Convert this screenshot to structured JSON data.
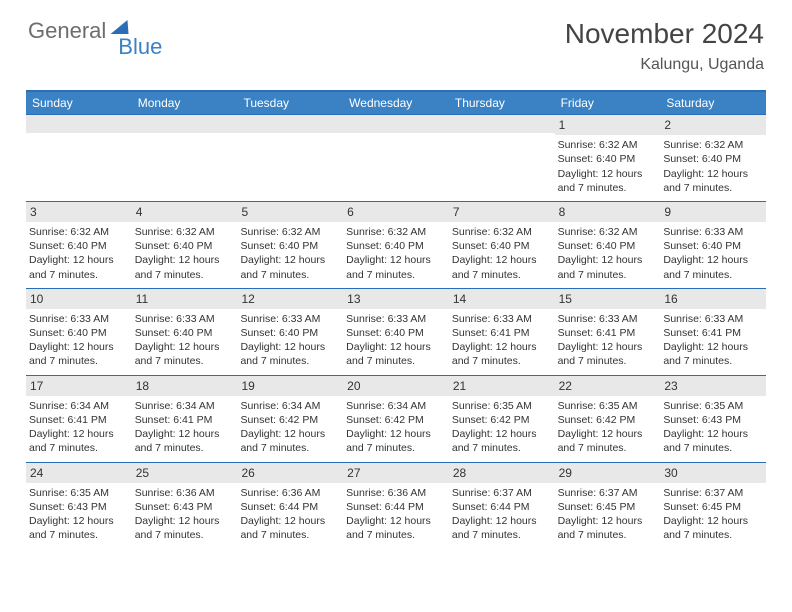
{
  "logo": {
    "part1": "General",
    "part2": "Blue"
  },
  "title": "November 2024",
  "subtitle": "Kalungu, Uganda",
  "colors": {
    "header_bg": "#3b82c4",
    "border": "#2a6fb5",
    "daynum_bg": "#e8e8e8",
    "text": "#333333",
    "logo_gray": "#6d6d6d",
    "logo_blue": "#3b82c4"
  },
  "day_headers": [
    "Sunday",
    "Monday",
    "Tuesday",
    "Wednesday",
    "Thursday",
    "Friday",
    "Saturday"
  ],
  "first_weekday_index": 5,
  "days": [
    {
      "n": 1,
      "sunrise": "6:32 AM",
      "sunset": "6:40 PM",
      "daylight": "12 hours and 7 minutes."
    },
    {
      "n": 2,
      "sunrise": "6:32 AM",
      "sunset": "6:40 PM",
      "daylight": "12 hours and 7 minutes."
    },
    {
      "n": 3,
      "sunrise": "6:32 AM",
      "sunset": "6:40 PM",
      "daylight": "12 hours and 7 minutes."
    },
    {
      "n": 4,
      "sunrise": "6:32 AM",
      "sunset": "6:40 PM",
      "daylight": "12 hours and 7 minutes."
    },
    {
      "n": 5,
      "sunrise": "6:32 AM",
      "sunset": "6:40 PM",
      "daylight": "12 hours and 7 minutes."
    },
    {
      "n": 6,
      "sunrise": "6:32 AM",
      "sunset": "6:40 PM",
      "daylight": "12 hours and 7 minutes."
    },
    {
      "n": 7,
      "sunrise": "6:32 AM",
      "sunset": "6:40 PM",
      "daylight": "12 hours and 7 minutes."
    },
    {
      "n": 8,
      "sunrise": "6:32 AM",
      "sunset": "6:40 PM",
      "daylight": "12 hours and 7 minutes."
    },
    {
      "n": 9,
      "sunrise": "6:33 AM",
      "sunset": "6:40 PM",
      "daylight": "12 hours and 7 minutes."
    },
    {
      "n": 10,
      "sunrise": "6:33 AM",
      "sunset": "6:40 PM",
      "daylight": "12 hours and 7 minutes."
    },
    {
      "n": 11,
      "sunrise": "6:33 AM",
      "sunset": "6:40 PM",
      "daylight": "12 hours and 7 minutes."
    },
    {
      "n": 12,
      "sunrise": "6:33 AM",
      "sunset": "6:40 PM",
      "daylight": "12 hours and 7 minutes."
    },
    {
      "n": 13,
      "sunrise": "6:33 AM",
      "sunset": "6:40 PM",
      "daylight": "12 hours and 7 minutes."
    },
    {
      "n": 14,
      "sunrise": "6:33 AM",
      "sunset": "6:41 PM",
      "daylight": "12 hours and 7 minutes."
    },
    {
      "n": 15,
      "sunrise": "6:33 AM",
      "sunset": "6:41 PM",
      "daylight": "12 hours and 7 minutes."
    },
    {
      "n": 16,
      "sunrise": "6:33 AM",
      "sunset": "6:41 PM",
      "daylight": "12 hours and 7 minutes."
    },
    {
      "n": 17,
      "sunrise": "6:34 AM",
      "sunset": "6:41 PM",
      "daylight": "12 hours and 7 minutes."
    },
    {
      "n": 18,
      "sunrise": "6:34 AM",
      "sunset": "6:41 PM",
      "daylight": "12 hours and 7 minutes."
    },
    {
      "n": 19,
      "sunrise": "6:34 AM",
      "sunset": "6:42 PM",
      "daylight": "12 hours and 7 minutes."
    },
    {
      "n": 20,
      "sunrise": "6:34 AM",
      "sunset": "6:42 PM",
      "daylight": "12 hours and 7 minutes."
    },
    {
      "n": 21,
      "sunrise": "6:35 AM",
      "sunset": "6:42 PM",
      "daylight": "12 hours and 7 minutes."
    },
    {
      "n": 22,
      "sunrise": "6:35 AM",
      "sunset": "6:42 PM",
      "daylight": "12 hours and 7 minutes."
    },
    {
      "n": 23,
      "sunrise": "6:35 AM",
      "sunset": "6:43 PM",
      "daylight": "12 hours and 7 minutes."
    },
    {
      "n": 24,
      "sunrise": "6:35 AM",
      "sunset": "6:43 PM",
      "daylight": "12 hours and 7 minutes."
    },
    {
      "n": 25,
      "sunrise": "6:36 AM",
      "sunset": "6:43 PM",
      "daylight": "12 hours and 7 minutes."
    },
    {
      "n": 26,
      "sunrise": "6:36 AM",
      "sunset": "6:44 PM",
      "daylight": "12 hours and 7 minutes."
    },
    {
      "n": 27,
      "sunrise": "6:36 AM",
      "sunset": "6:44 PM",
      "daylight": "12 hours and 7 minutes."
    },
    {
      "n": 28,
      "sunrise": "6:37 AM",
      "sunset": "6:44 PM",
      "daylight": "12 hours and 7 minutes."
    },
    {
      "n": 29,
      "sunrise": "6:37 AM",
      "sunset": "6:45 PM",
      "daylight": "12 hours and 7 minutes."
    },
    {
      "n": 30,
      "sunrise": "6:37 AM",
      "sunset": "6:45 PM",
      "daylight": "12 hours and 7 minutes."
    }
  ],
  "labels": {
    "sunrise_prefix": "Sunrise: ",
    "sunset_prefix": "Sunset: ",
    "daylight_prefix": "Daylight: "
  }
}
